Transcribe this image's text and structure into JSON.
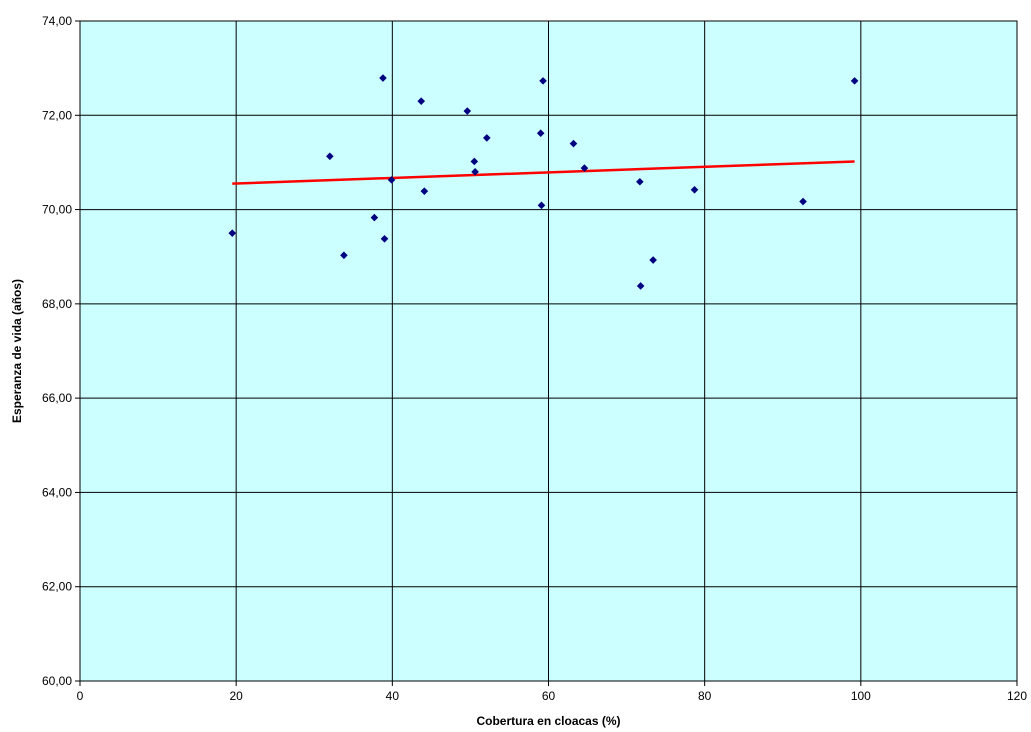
{
  "chart_data": {
    "type": "scatter",
    "title": "",
    "xlabel": "Cobertura en cloacas (%)",
    "ylabel": "Esperanza de vida (años)",
    "xlim": [
      0,
      120
    ],
    "ylim": [
      60,
      74
    ],
    "x_ticks": [
      "0",
      "20",
      "40",
      "60",
      "80",
      "100",
      "120"
    ],
    "y_ticks": [
      "60,00",
      "62,00",
      "64,00",
      "66,00",
      "68,00",
      "70,00",
      "72,00",
      "74,00"
    ],
    "grid": true,
    "legend": "none",
    "colors": {
      "plot_background": "#ccffff",
      "points": "#000080",
      "trendline": "#ff0000",
      "grid": "#000000"
    },
    "series": [
      {
        "points": [
          {
            "x": 19.5,
            "y": 69.5
          },
          {
            "x": 32.0,
            "y": 71.13
          },
          {
            "x": 33.8,
            "y": 69.03
          },
          {
            "x": 37.7,
            "y": 69.83
          },
          {
            "x": 38.8,
            "y": 72.79
          },
          {
            "x": 39.0,
            "y": 69.38
          },
          {
            "x": 39.9,
            "y": 70.63
          },
          {
            "x": 43.7,
            "y": 72.3
          },
          {
            "x": 44.1,
            "y": 70.39
          },
          {
            "x": 49.6,
            "y": 72.09
          },
          {
            "x": 50.5,
            "y": 71.02
          },
          {
            "x": 50.6,
            "y": 70.8
          },
          {
            "x": 52.1,
            "y": 71.52
          },
          {
            "x": 59.0,
            "y": 71.62
          },
          {
            "x": 59.1,
            "y": 70.09
          },
          {
            "x": 59.3,
            "y": 72.73
          },
          {
            "x": 63.2,
            "y": 71.4
          },
          {
            "x": 64.6,
            "y": 70.88
          },
          {
            "x": 71.7,
            "y": 70.59
          },
          {
            "x": 71.8,
            "y": 68.38
          },
          {
            "x": 73.4,
            "y": 68.93
          },
          {
            "x": 78.7,
            "y": 70.42
          },
          {
            "x": 92.6,
            "y": 70.17
          },
          {
            "x": 99.2,
            "y": 72.73
          }
        ]
      }
    ],
    "trendline": {
      "x": [
        19.5,
        99.2
      ],
      "y": [
        70.55,
        71.02
      ]
    }
  }
}
